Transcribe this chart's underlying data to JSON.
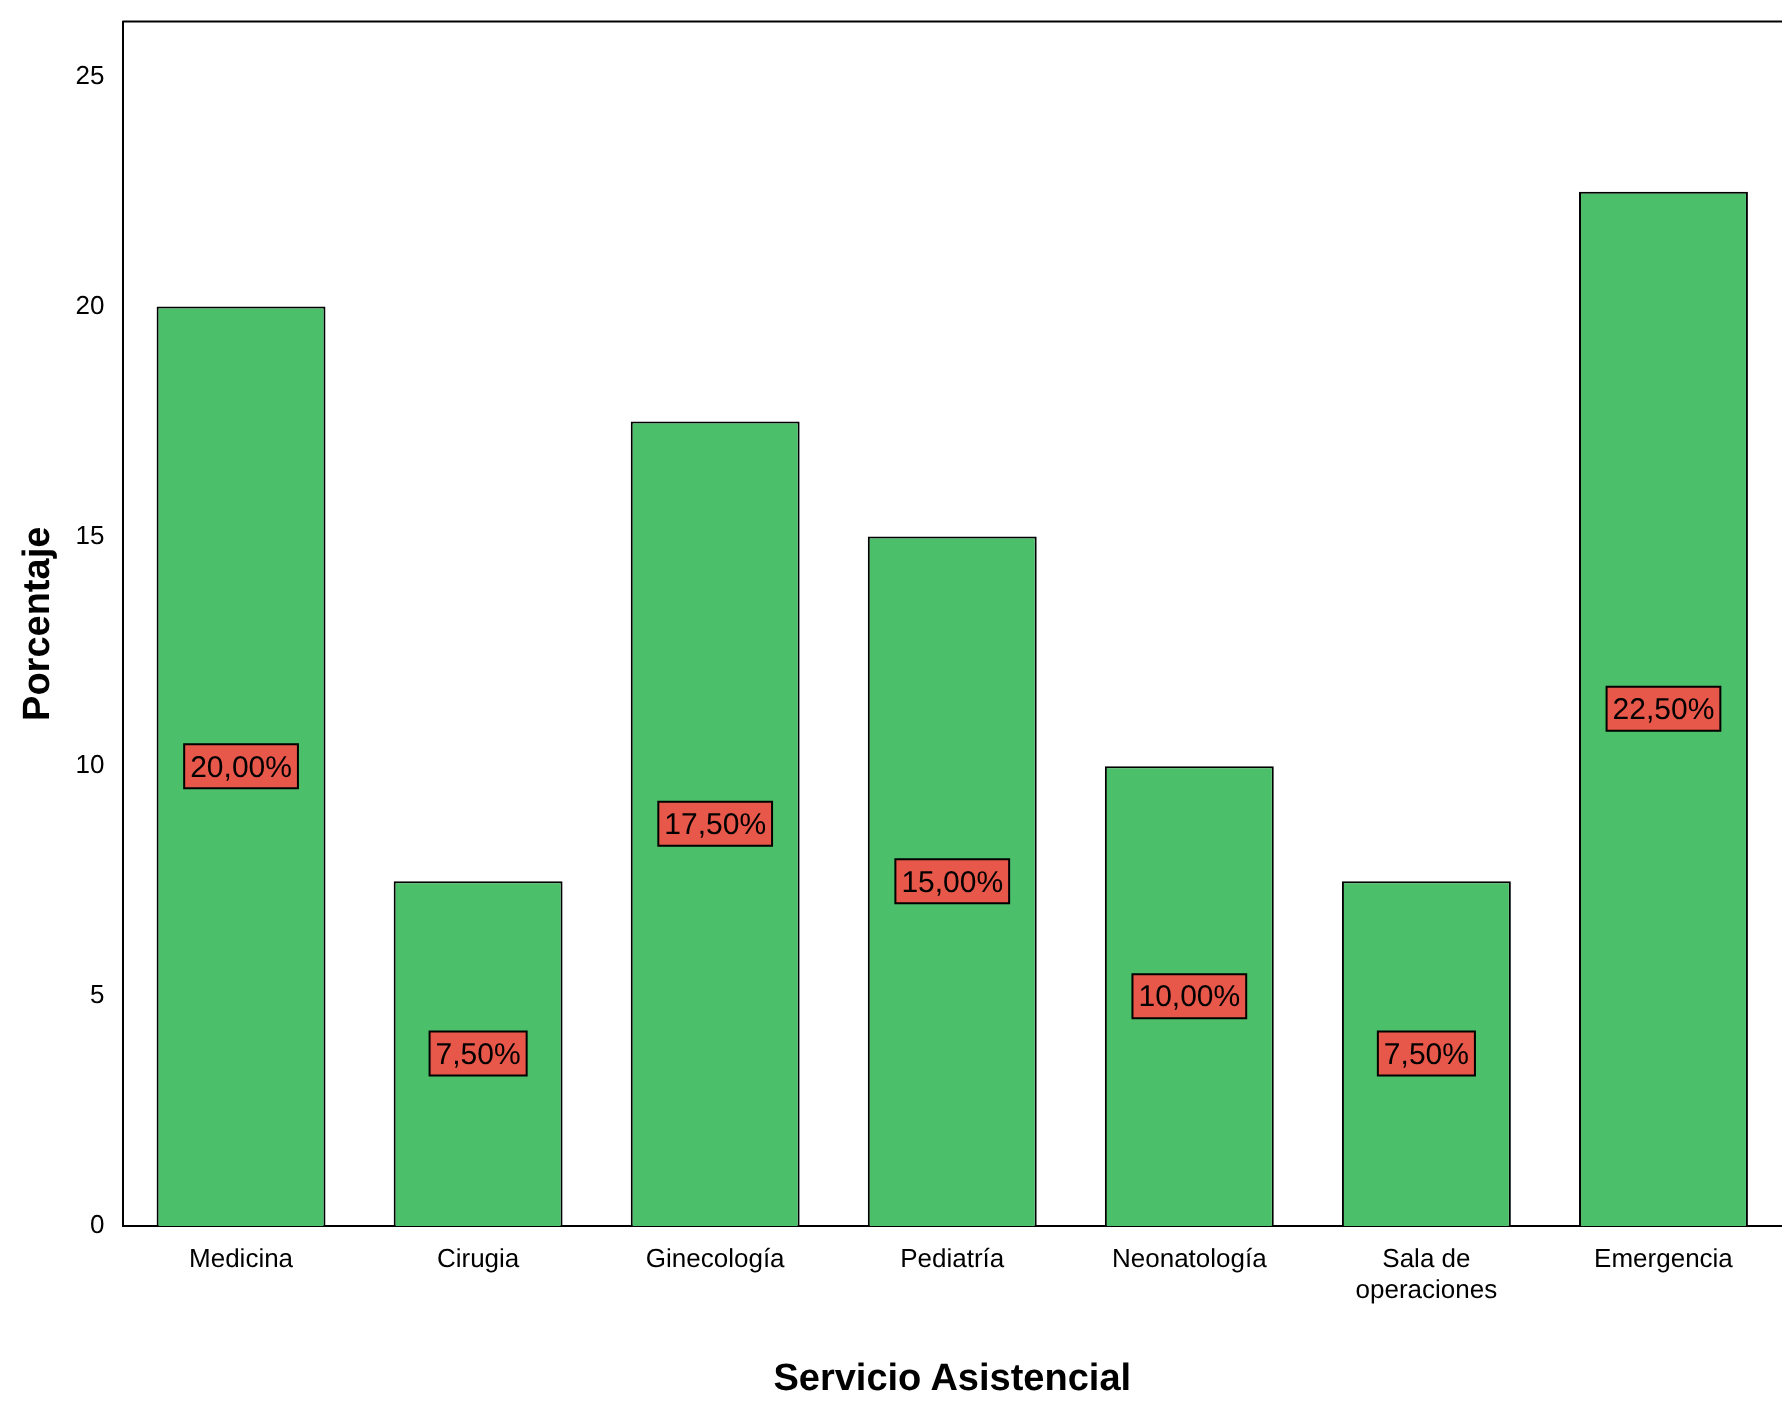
{
  "chart_data": {
    "type": "bar",
    "xlabel": "Servicio Asistencial",
    "ylabel": "Porcentaje",
    "categories": [
      "Medicina",
      "Cirugia",
      "Ginecología",
      "Pediatría",
      "Neonatología",
      "Sala de operaciones",
      "Emergencia"
    ],
    "values": [
      20,
      7.5,
      17.5,
      15,
      10,
      7.5,
      22.5
    ],
    "value_labels": [
      "20,00%",
      "7,50%",
      "17,50%",
      "15,00%",
      "10,00%",
      "7,50%",
      "22,50%"
    ],
    "color": "#4cbf6a",
    "ylim": [
      0,
      26.2
    ],
    "yticks": [
      0,
      5,
      10,
      15,
      20,
      25
    ],
    "grid": false,
    "legend": false
  }
}
